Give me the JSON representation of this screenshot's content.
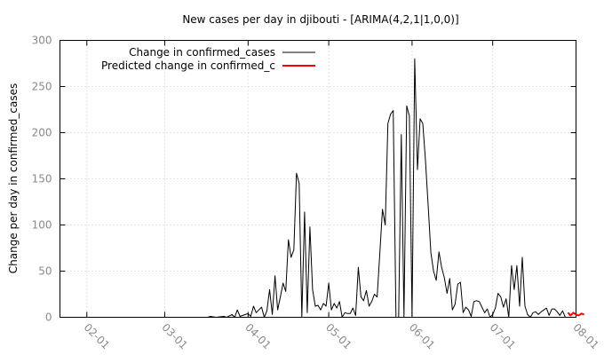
{
  "chart_data": {
    "type": "line",
    "title": "New cases per day in djibouti -  [ARIMA(4,2,1|1,0,0)]",
    "xlabel": "",
    "ylabel": "Change per day in confirmed_cases",
    "ylim": [
      0,
      300
    ],
    "xlim": [
      "2020-01-22",
      "2020-08-01"
    ],
    "yticks": [
      "0",
      "50",
      "100",
      "150",
      "200",
      "250",
      "300"
    ],
    "xticks": [
      {
        "date": "2020-02-01",
        "label": "02-01"
      },
      {
        "date": "2020-03-01",
        "label": "03-01"
      },
      {
        "date": "2020-04-01",
        "label": "04-01"
      },
      {
        "date": "2020-05-01",
        "label": "05-01"
      },
      {
        "date": "2020-06-01",
        "label": "06-01"
      },
      {
        "date": "2020-07-01",
        "label": "07-01"
      },
      {
        "date": "2020-08-01",
        "label": "08-01"
      }
    ],
    "grid": true,
    "legend_position": "top-left",
    "series": [
      {
        "name": "Change in confirmed_cases",
        "color": "#000000",
        "points": [
          [
            "2020-01-22",
            0
          ],
          [
            "2020-03-17",
            0
          ],
          [
            "2020-03-18",
            1
          ],
          [
            "2020-03-20",
            0
          ],
          [
            "2020-03-23",
            1
          ],
          [
            "2020-03-24",
            0
          ],
          [
            "2020-03-26",
            3
          ],
          [
            "2020-03-27",
            0
          ],
          [
            "2020-03-28",
            8
          ],
          [
            "2020-03-29",
            1
          ],
          [
            "2020-03-30",
            2
          ],
          [
            "2020-03-31",
            3
          ],
          [
            "2020-04-01",
            4
          ],
          [
            "2020-04-02",
            1
          ],
          [
            "2020-04-03",
            12
          ],
          [
            "2020-04-04",
            5
          ],
          [
            "2020-04-05",
            8
          ],
          [
            "2020-04-06",
            11
          ],
          [
            "2020-04-07",
            0
          ],
          [
            "2020-04-08",
            7
          ],
          [
            "2020-04-09",
            30
          ],
          [
            "2020-04-10",
            3
          ],
          [
            "2020-04-11",
            45
          ],
          [
            "2020-04-12",
            8
          ],
          [
            "2020-04-13",
            22
          ],
          [
            "2020-04-14",
            37
          ],
          [
            "2020-04-15",
            28
          ],
          [
            "2020-04-16",
            84
          ],
          [
            "2020-04-17",
            65
          ],
          [
            "2020-04-18",
            73
          ],
          [
            "2020-04-19",
            156
          ],
          [
            "2020-04-20",
            145
          ],
          [
            "2020-04-21",
            0
          ],
          [
            "2020-04-22",
            114
          ],
          [
            "2020-04-23",
            5
          ],
          [
            "2020-04-24",
            98
          ],
          [
            "2020-04-25",
            30
          ],
          [
            "2020-04-26",
            12
          ],
          [
            "2020-04-27",
            13
          ],
          [
            "2020-04-28",
            8
          ],
          [
            "2020-04-29",
            15
          ],
          [
            "2020-04-30",
            12
          ],
          [
            "2020-05-01",
            37
          ],
          [
            "2020-05-02",
            8
          ],
          [
            "2020-05-03",
            15
          ],
          [
            "2020-05-04",
            10
          ],
          [
            "2020-05-05",
            17
          ],
          [
            "2020-05-06",
            0
          ],
          [
            "2020-05-07",
            5
          ],
          [
            "2020-05-08",
            4
          ],
          [
            "2020-05-09",
            4
          ],
          [
            "2020-05-10",
            10
          ],
          [
            "2020-05-11",
            2
          ],
          [
            "2020-05-12",
            54
          ],
          [
            "2020-05-13",
            22
          ],
          [
            "2020-05-14",
            18
          ],
          [
            "2020-05-15",
            29
          ],
          [
            "2020-05-16",
            12
          ],
          [
            "2020-05-17",
            17
          ],
          [
            "2020-05-18",
            25
          ],
          [
            "2020-05-19",
            22
          ],
          [
            "2020-05-20",
            69
          ],
          [
            "2020-05-21",
            117
          ],
          [
            "2020-05-22",
            100
          ],
          [
            "2020-05-23",
            210
          ],
          [
            "2020-05-24",
            220
          ],
          [
            "2020-05-25",
            224
          ],
          [
            "2020-05-26",
            0
          ],
          [
            "2020-05-27",
            0
          ],
          [
            "2020-05-28",
            198
          ],
          [
            "2020-05-29",
            0
          ],
          [
            "2020-05-30",
            229
          ],
          [
            "2020-05-31",
            218
          ],
          [
            "2020-06-01",
            0
          ],
          [
            "2020-06-02",
            280
          ],
          [
            "2020-06-03",
            160
          ],
          [
            "2020-06-04",
            215
          ],
          [
            "2020-06-05",
            210
          ],
          [
            "2020-06-06",
            170
          ],
          [
            "2020-06-07",
            120
          ],
          [
            "2020-06-08",
            70
          ],
          [
            "2020-06-09",
            50
          ],
          [
            "2020-06-10",
            40
          ],
          [
            "2020-06-11",
            71
          ],
          [
            "2020-06-12",
            54
          ],
          [
            "2020-06-13",
            43
          ],
          [
            "2020-06-14",
            26
          ],
          [
            "2020-06-15",
            42
          ],
          [
            "2020-06-16",
            8
          ],
          [
            "2020-06-17",
            14
          ],
          [
            "2020-06-18",
            36
          ],
          [
            "2020-06-19",
            38
          ],
          [
            "2020-06-20",
            5
          ],
          [
            "2020-06-21",
            11
          ],
          [
            "2020-06-22",
            8
          ],
          [
            "2020-06-23",
            1
          ],
          [
            "2020-06-24",
            17
          ],
          [
            "2020-06-25",
            18
          ],
          [
            "2020-06-26",
            17
          ],
          [
            "2020-06-27",
            11
          ],
          [
            "2020-06-28",
            5
          ],
          [
            "2020-06-29",
            9
          ],
          [
            "2020-06-30",
            0
          ],
          [
            "2020-07-01",
            3
          ],
          [
            "2020-07-02",
            10
          ],
          [
            "2020-07-03",
            26
          ],
          [
            "2020-07-04",
            22
          ],
          [
            "2020-07-05",
            11
          ],
          [
            "2020-07-06",
            20
          ],
          [
            "2020-07-07",
            0
          ],
          [
            "2020-07-08",
            56
          ],
          [
            "2020-07-09",
            30
          ],
          [
            "2020-07-10",
            56
          ],
          [
            "2020-07-11",
            12
          ],
          [
            "2020-07-12",
            65
          ],
          [
            "2020-07-13",
            12
          ],
          [
            "2020-07-14",
            3
          ],
          [
            "2020-07-15",
            0
          ],
          [
            "2020-07-16",
            5
          ],
          [
            "2020-07-17",
            6
          ],
          [
            "2020-07-18",
            3
          ],
          [
            "2020-07-19",
            6
          ],
          [
            "2020-07-20",
            8
          ],
          [
            "2020-07-21",
            10
          ],
          [
            "2020-07-22",
            2
          ],
          [
            "2020-07-23",
            9
          ],
          [
            "2020-07-24",
            9
          ],
          [
            "2020-07-25",
            6
          ],
          [
            "2020-07-26",
            2
          ],
          [
            "2020-07-27",
            7
          ],
          [
            "2020-07-28",
            0
          ]
        ]
      },
      {
        "name": "Predicted change in confirmed_c",
        "color": "#ff0000",
        "points": [
          [
            "2020-07-29",
            5
          ],
          [
            "2020-07-30",
            2
          ],
          [
            "2020-07-31",
            5
          ],
          [
            "2020-08-01",
            3
          ],
          [
            "2020-08-02",
            2
          ],
          [
            "2020-08-03",
            4
          ],
          [
            "2020-08-04",
            3
          ]
        ]
      }
    ]
  }
}
